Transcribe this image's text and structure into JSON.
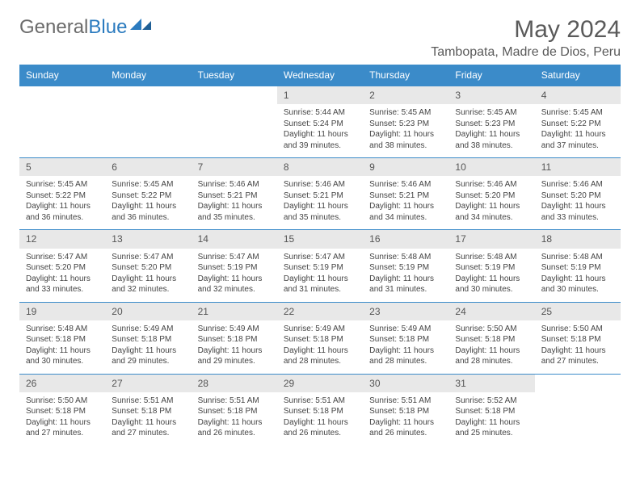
{
  "brand": {
    "word1": "General",
    "word2": "Blue",
    "text_color": "#6b6b6b",
    "accent_color": "#2b7bbf"
  },
  "title": "May 2024",
  "location": "Tambopata, Madre de Dios, Peru",
  "colors": {
    "header_bg": "#3b8bc9",
    "header_text": "#ffffff",
    "daynum_bg": "#e8e8e8",
    "border": "#3b8bc9",
    "body_text": "#444444"
  },
  "daysOfWeek": [
    "Sunday",
    "Monday",
    "Tuesday",
    "Wednesday",
    "Thursday",
    "Friday",
    "Saturday"
  ],
  "startOffset": 3,
  "days": [
    {
      "n": "1",
      "sunrise": "5:44 AM",
      "sunset": "5:24 PM",
      "daylight": "11 hours and 39 minutes."
    },
    {
      "n": "2",
      "sunrise": "5:45 AM",
      "sunset": "5:23 PM",
      "daylight": "11 hours and 38 minutes."
    },
    {
      "n": "3",
      "sunrise": "5:45 AM",
      "sunset": "5:23 PM",
      "daylight": "11 hours and 38 minutes."
    },
    {
      "n": "4",
      "sunrise": "5:45 AM",
      "sunset": "5:22 PM",
      "daylight": "11 hours and 37 minutes."
    },
    {
      "n": "5",
      "sunrise": "5:45 AM",
      "sunset": "5:22 PM",
      "daylight": "11 hours and 36 minutes."
    },
    {
      "n": "6",
      "sunrise": "5:45 AM",
      "sunset": "5:22 PM",
      "daylight": "11 hours and 36 minutes."
    },
    {
      "n": "7",
      "sunrise": "5:46 AM",
      "sunset": "5:21 PM",
      "daylight": "11 hours and 35 minutes."
    },
    {
      "n": "8",
      "sunrise": "5:46 AM",
      "sunset": "5:21 PM",
      "daylight": "11 hours and 35 minutes."
    },
    {
      "n": "9",
      "sunrise": "5:46 AM",
      "sunset": "5:21 PM",
      "daylight": "11 hours and 34 minutes."
    },
    {
      "n": "10",
      "sunrise": "5:46 AM",
      "sunset": "5:20 PM",
      "daylight": "11 hours and 34 minutes."
    },
    {
      "n": "11",
      "sunrise": "5:46 AM",
      "sunset": "5:20 PM",
      "daylight": "11 hours and 33 minutes."
    },
    {
      "n": "12",
      "sunrise": "5:47 AM",
      "sunset": "5:20 PM",
      "daylight": "11 hours and 33 minutes."
    },
    {
      "n": "13",
      "sunrise": "5:47 AM",
      "sunset": "5:20 PM",
      "daylight": "11 hours and 32 minutes."
    },
    {
      "n": "14",
      "sunrise": "5:47 AM",
      "sunset": "5:19 PM",
      "daylight": "11 hours and 32 minutes."
    },
    {
      "n": "15",
      "sunrise": "5:47 AM",
      "sunset": "5:19 PM",
      "daylight": "11 hours and 31 minutes."
    },
    {
      "n": "16",
      "sunrise": "5:48 AM",
      "sunset": "5:19 PM",
      "daylight": "11 hours and 31 minutes."
    },
    {
      "n": "17",
      "sunrise": "5:48 AM",
      "sunset": "5:19 PM",
      "daylight": "11 hours and 30 minutes."
    },
    {
      "n": "18",
      "sunrise": "5:48 AM",
      "sunset": "5:19 PM",
      "daylight": "11 hours and 30 minutes."
    },
    {
      "n": "19",
      "sunrise": "5:48 AM",
      "sunset": "5:18 PM",
      "daylight": "11 hours and 30 minutes."
    },
    {
      "n": "20",
      "sunrise": "5:49 AM",
      "sunset": "5:18 PM",
      "daylight": "11 hours and 29 minutes."
    },
    {
      "n": "21",
      "sunrise": "5:49 AM",
      "sunset": "5:18 PM",
      "daylight": "11 hours and 29 minutes."
    },
    {
      "n": "22",
      "sunrise": "5:49 AM",
      "sunset": "5:18 PM",
      "daylight": "11 hours and 28 minutes."
    },
    {
      "n": "23",
      "sunrise": "5:49 AM",
      "sunset": "5:18 PM",
      "daylight": "11 hours and 28 minutes."
    },
    {
      "n": "24",
      "sunrise": "5:50 AM",
      "sunset": "5:18 PM",
      "daylight": "11 hours and 28 minutes."
    },
    {
      "n": "25",
      "sunrise": "5:50 AM",
      "sunset": "5:18 PM",
      "daylight": "11 hours and 27 minutes."
    },
    {
      "n": "26",
      "sunrise": "5:50 AM",
      "sunset": "5:18 PM",
      "daylight": "11 hours and 27 minutes."
    },
    {
      "n": "27",
      "sunrise": "5:51 AM",
      "sunset": "5:18 PM",
      "daylight": "11 hours and 27 minutes."
    },
    {
      "n": "28",
      "sunrise": "5:51 AM",
      "sunset": "5:18 PM",
      "daylight": "11 hours and 26 minutes."
    },
    {
      "n": "29",
      "sunrise": "5:51 AM",
      "sunset": "5:18 PM",
      "daylight": "11 hours and 26 minutes."
    },
    {
      "n": "30",
      "sunrise": "5:51 AM",
      "sunset": "5:18 PM",
      "daylight": "11 hours and 26 minutes."
    },
    {
      "n": "31",
      "sunrise": "5:52 AM",
      "sunset": "5:18 PM",
      "daylight": "11 hours and 25 minutes."
    }
  ],
  "labels": {
    "sunrise": "Sunrise:",
    "sunset": "Sunset:",
    "daylight": "Daylight:"
  }
}
